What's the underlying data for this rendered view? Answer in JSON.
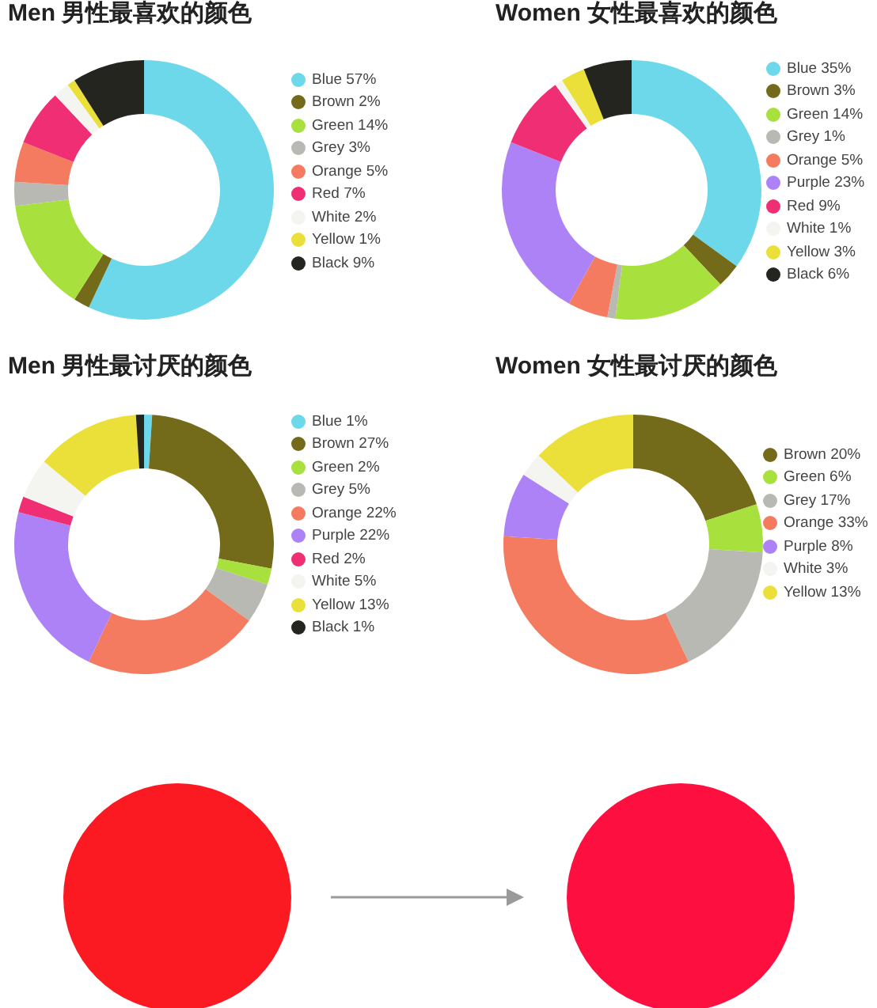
{
  "chart_data": [
    {
      "type": "donut",
      "title": "Men 男性最喜欢的颜色",
      "categories": [
        "Blue",
        "Brown",
        "Green",
        "Grey",
        "Orange",
        "Red",
        "White",
        "Yellow",
        "Black"
      ],
      "values": [
        57,
        2,
        14,
        3,
        5,
        7,
        2,
        1,
        9
      ],
      "value_labels": [
        "57%",
        "2%",
        "14%",
        "3%",
        "5%",
        "7%",
        "2%",
        "1%",
        "9%"
      ],
      "colors": [
        "#6cd8ea",
        "#736a1a",
        "#a8e03e",
        "#b9b9b4",
        "#f47b60",
        "#ef2e73",
        "#f4f4f1",
        "#ebe03a",
        "#25251f"
      ],
      "legend": "right"
    },
    {
      "type": "donut",
      "title": "Women 女性最喜欢的颜色",
      "categories": [
        "Blue",
        "Brown",
        "Green",
        "Grey",
        "Orange",
        "Purple",
        "Red",
        "White",
        "Yellow",
        "Black"
      ],
      "values": [
        35,
        3,
        14,
        1,
        5,
        23,
        9,
        1,
        3,
        6
      ],
      "value_labels": [
        "35%",
        "3%",
        "14%",
        "1%",
        "5%",
        "23%",
        "9%",
        "1%",
        "3%",
        "6%"
      ],
      "colors": [
        "#6cd8ea",
        "#736a1a",
        "#a8e03e",
        "#b9b9b4",
        "#f47b60",
        "#ae82f7",
        "#ef2e73",
        "#f4f4f1",
        "#ebe03a",
        "#25251f"
      ],
      "legend": "right"
    },
    {
      "type": "donut",
      "title": "Men 男性最讨厌的颜色",
      "categories": [
        "Blue",
        "Brown",
        "Green",
        "Grey",
        "Orange",
        "Purple",
        "Red",
        "White",
        "Yellow",
        "Black"
      ],
      "values": [
        1,
        27,
        2,
        5,
        22,
        22,
        2,
        5,
        13,
        1
      ],
      "value_labels": [
        "1%",
        "27%",
        "2%",
        "5%",
        "22%",
        "22%",
        "2%",
        "5%",
        "13%",
        "1%"
      ],
      "colors": [
        "#6cd8ea",
        "#736a1a",
        "#a8e03e",
        "#b9b9b4",
        "#f47b60",
        "#ae82f7",
        "#ef2e73",
        "#f4f4f1",
        "#ebe03a",
        "#25251f"
      ],
      "legend": "right"
    },
    {
      "type": "donut",
      "title": "Women 女性最讨厌的颜色",
      "categories": [
        "Brown",
        "Green",
        "Grey",
        "Orange",
        "Purple",
        "White",
        "Yellow"
      ],
      "values": [
        20,
        6,
        17,
        33,
        8,
        3,
        13
      ],
      "value_labels": [
        "20%",
        "6%",
        "17%",
        "33%",
        "8%",
        "3%",
        "13%"
      ],
      "colors": [
        "#736a1a",
        "#a8e03e",
        "#b9b9b4",
        "#f47b60",
        "#ae82f7",
        "#f4f4f1",
        "#ebe03a"
      ],
      "legend": "right"
    }
  ]
}
